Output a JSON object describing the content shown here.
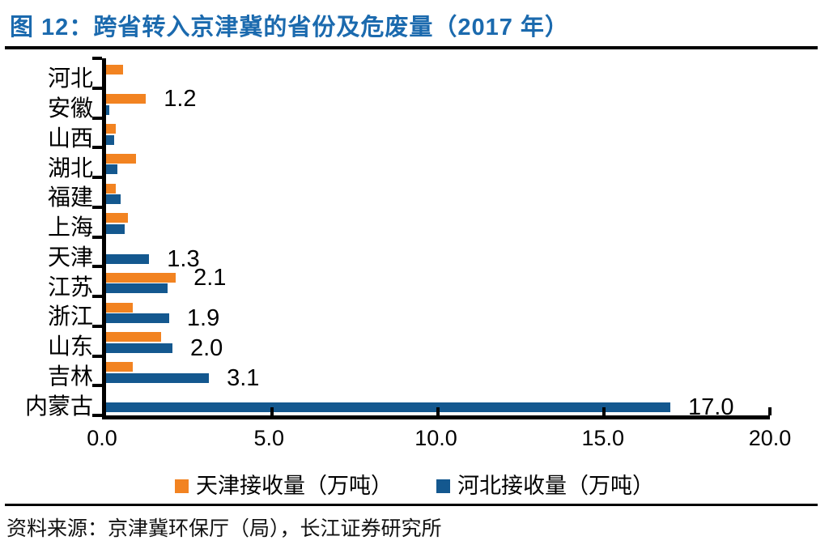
{
  "title": "图 12：跨省转入京津冀的省份及危废量（2017 年）",
  "source": "资料来源：京津冀环保厅（局），长江证券研究所",
  "colors": {
    "title_blue": "#1B6AAE",
    "axis_black": "#000000",
    "series_orange": "#F28321",
    "series_blue": "#14588F"
  },
  "chart_data": {
    "type": "bar",
    "orientation": "horizontal",
    "title": "跨省转入京津冀的省份及危废量（2017 年）",
    "categories": [
      "河北",
      "安徽",
      "山西",
      "湖北",
      "福建",
      "上海",
      "天津",
      "江苏",
      "浙江",
      "山东",
      "吉林",
      "内蒙古"
    ],
    "series": [
      {
        "name": "天津接收量（万吨）",
        "color": "#F28321",
        "values": [
          0.5,
          1.2,
          0.3,
          0.9,
          0.3,
          0.65,
          0,
          2.1,
          0.8,
          1.65,
          0.8,
          0
        ]
      },
      {
        "name": "河北接收量（万吨）",
        "color": "#14588F",
        "values": [
          0,
          0.1,
          0.25,
          0.35,
          0.45,
          0.55,
          1.3,
          1.85,
          1.9,
          2.0,
          3.1,
          17.0
        ]
      }
    ],
    "data_labels": [
      {
        "category": "安徽",
        "series": 0,
        "text": "1.2"
      },
      {
        "category": "天津",
        "series": 1,
        "text": "1.3"
      },
      {
        "category": "江苏",
        "series": 0,
        "text": "2.1"
      },
      {
        "category": "浙江",
        "series": 1,
        "text": "1.9"
      },
      {
        "category": "山东",
        "series": 1,
        "text": "2.0"
      },
      {
        "category": "吉林",
        "series": 1,
        "text": "3.1"
      },
      {
        "category": "内蒙古",
        "series": 1,
        "text": "17.0"
      }
    ],
    "x_ticks": [
      "0.0",
      "5.0",
      "10.0",
      "15.0",
      "20.0"
    ],
    "xlim": [
      0,
      20
    ],
    "grid": false,
    "legend_position": "bottom"
  }
}
